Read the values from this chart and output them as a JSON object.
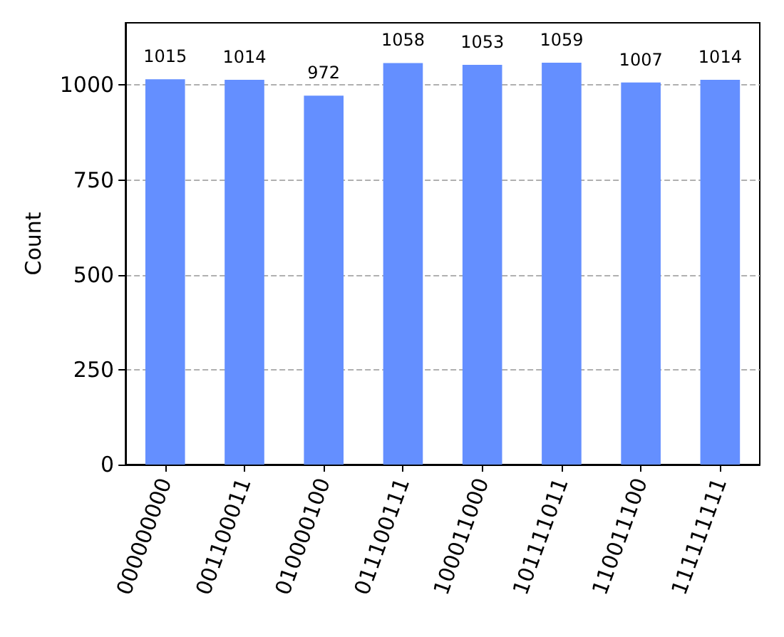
{
  "chart_data": {
    "type": "bar",
    "ylabel": "Count",
    "categories": [
      "000000000",
      "001100011",
      "010000100",
      "011100111",
      "100011000",
      "101111011",
      "110011100",
      "111111111"
    ],
    "values": [
      1015,
      1014,
      972,
      1058,
      1053,
      1059,
      1007,
      1014
    ],
    "color": "#648fff",
    "ylim": [
      0,
      1164
    ],
    "yticks": [
      0,
      250,
      500,
      750,
      1000
    ],
    "grid": "y",
    "data_labels": true
  }
}
